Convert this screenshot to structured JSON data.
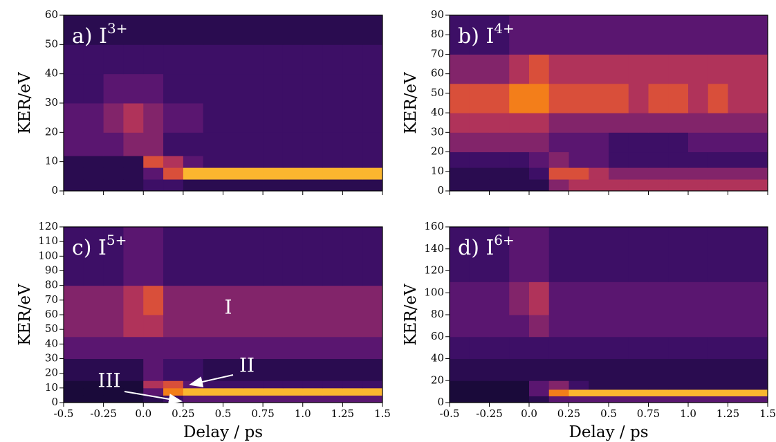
{
  "colormap": [
    "#1a0a3a",
    "#2a0c50",
    "#3d0f66",
    "#5a1670",
    "#82246a",
    "#b0335a",
    "#d94f3a",
    "#f37e1a",
    "#fbb62f",
    "#fcffa4"
  ],
  "chart_data": [
    {
      "type": "heatmap",
      "title": "a) I",
      "title_sup": "3+",
      "ylabel": "KER/eV",
      "xticklabels": false,
      "xlim": [
        -0.5,
        1.5
      ],
      "ylim": [
        0,
        60
      ],
      "zlim": [
        0,
        9
      ],
      "xticks": [
        -0.5,
        -0.25,
        0,
        0.25,
        0.5,
        0.75,
        1,
        1.25,
        1.5
      ],
      "yticks": [
        0,
        10,
        20,
        30,
        40,
        50,
        60
      ],
      "xbins": [
        -0.5,
        -0.375,
        -0.25,
        -0.125,
        0,
        0.125,
        0.25,
        0.375,
        0.5,
        0.625,
        0.75,
        0.875,
        1,
        1.125,
        1.25,
        1.375,
        1.5
      ],
      "ybins": [
        0,
        4,
        8,
        12,
        20,
        30,
        40,
        50,
        60
      ],
      "z": [
        [
          1,
          1,
          1,
          1,
          2,
          2,
          1,
          1,
          1,
          1,
          1,
          1,
          1,
          1,
          1,
          1
        ],
        [
          1,
          1,
          1,
          1,
          3,
          6,
          8,
          8,
          8,
          8,
          8,
          8,
          8,
          8,
          8,
          8
        ],
        [
          1,
          1,
          1,
          1,
          6,
          5,
          3,
          2,
          2,
          2,
          2,
          2,
          2,
          2,
          2,
          2
        ],
        [
          3,
          3,
          3,
          4,
          4,
          2,
          2,
          2,
          2,
          2,
          2,
          2,
          2,
          2,
          2,
          2
        ],
        [
          3,
          3,
          4,
          5,
          4,
          3,
          3,
          2,
          2,
          2,
          2,
          2,
          2,
          2,
          2,
          2
        ],
        [
          2,
          2,
          3,
          3,
          3,
          2,
          2,
          2,
          2,
          2,
          2,
          2,
          2,
          2,
          2,
          2
        ],
        [
          2,
          2,
          2,
          2,
          2,
          2,
          2,
          2,
          2,
          2,
          2,
          2,
          2,
          2,
          2,
          2
        ],
        [
          1,
          1,
          1,
          1,
          1,
          1,
          1,
          1,
          1,
          1,
          1,
          1,
          1,
          1,
          1,
          1
        ]
      ]
    },
    {
      "type": "heatmap",
      "title": "b) I",
      "title_sup": "4+",
      "ylabel": "KER/eV",
      "xticklabels": false,
      "xlim": [
        -0.5,
        1.5
      ],
      "ylim": [
        0,
        90
      ],
      "zlim": [
        0,
        9
      ],
      "xticks": [
        -0.5,
        -0.25,
        0,
        0.25,
        0.5,
        0.75,
        1,
        1.25,
        1.5
      ],
      "yticks": [
        0,
        10,
        20,
        30,
        40,
        50,
        60,
        70,
        80,
        90
      ],
      "xbins": [
        -0.5,
        -0.375,
        -0.25,
        -0.125,
        0,
        0.125,
        0.25,
        0.375,
        0.5,
        0.625,
        0.75,
        0.875,
        1,
        1.125,
        1.25,
        1.375,
        1.5
      ],
      "ybins": [
        0,
        6,
        12,
        20,
        30,
        40,
        55,
        70,
        90
      ],
      "z": [
        [
          1,
          1,
          1,
          1,
          1,
          4,
          5,
          5,
          5,
          5,
          5,
          5,
          5,
          5,
          5,
          5
        ],
        [
          1,
          1,
          1,
          1,
          2,
          6,
          6,
          5,
          4,
          4,
          4,
          4,
          4,
          4,
          4,
          4
        ],
        [
          2,
          2,
          2,
          2,
          3,
          4,
          3,
          3,
          2,
          2,
          2,
          2,
          2,
          2,
          2,
          2
        ],
        [
          4,
          4,
          4,
          4,
          4,
          3,
          3,
          3,
          2,
          2,
          2,
          2,
          3,
          3,
          3,
          3
        ],
        [
          5,
          5,
          5,
          5,
          5,
          4,
          4,
          4,
          4,
          4,
          4,
          4,
          4,
          4,
          4,
          4
        ],
        [
          6,
          6,
          6,
          7,
          7,
          6,
          6,
          6,
          6,
          5,
          6,
          6,
          5,
          6,
          5,
          5
        ],
        [
          4,
          4,
          4,
          5,
          6,
          5,
          5,
          5,
          5,
          5,
          5,
          5,
          5,
          5,
          5,
          5
        ],
        [
          2,
          2,
          2,
          3,
          3,
          3,
          3,
          3,
          3,
          3,
          3,
          3,
          3,
          3,
          3,
          3
        ]
      ]
    },
    {
      "type": "heatmap",
      "title": "c) I",
      "title_sup": "5+",
      "ylabel": "KER/eV",
      "xlabel": "Delay / ps",
      "xticklabels": true,
      "xlim": [
        -0.5,
        1.5
      ],
      "ylim": [
        0,
        120
      ],
      "zlim": [
        0,
        9
      ],
      "xticks": [
        -0.5,
        -0.25,
        {
          "value": 0,
          "label": "0.0"
        },
        0.25,
        0.5,
        0.75,
        {
          "value": 1,
          "label": "1.0"
        },
        1.25,
        1.5
      ],
      "yticks": [
        0,
        10,
        20,
        30,
        40,
        50,
        60,
        70,
        80,
        90,
        100,
        110,
        120
      ],
      "xbins": [
        -0.5,
        -0.375,
        -0.25,
        -0.125,
        0,
        0.125,
        0.25,
        0.375,
        0.5,
        0.625,
        0.75,
        0.875,
        1,
        1.125,
        1.25,
        1.375,
        1.5
      ],
      "ybins": [
        0,
        5,
        10,
        15,
        30,
        45,
        60,
        80,
        120
      ],
      "z": [
        [
          0,
          0,
          0,
          0,
          1,
          2,
          3,
          3,
          3,
          3,
          3,
          3,
          3,
          3,
          3,
          3
        ],
        [
          0,
          0,
          0,
          0,
          3,
          7,
          8,
          8,
          8,
          8,
          8,
          8,
          8,
          8,
          8,
          8
        ],
        [
          0,
          0,
          0,
          0,
          5,
          6,
          3,
          2,
          2,
          2,
          2,
          2,
          2,
          2,
          2,
          2
        ],
        [
          1,
          1,
          1,
          1,
          3,
          2,
          2,
          1,
          1,
          1,
          1,
          1,
          1,
          1,
          1,
          1
        ],
        [
          3,
          3,
          3,
          3,
          3,
          3,
          3,
          3,
          3,
          3,
          3,
          3,
          3,
          3,
          3,
          3
        ],
        [
          4,
          4,
          4,
          5,
          5,
          4,
          4,
          4,
          4,
          4,
          4,
          4,
          4,
          4,
          4,
          4
        ],
        [
          4,
          4,
          4,
          5,
          6,
          4,
          4,
          4,
          4,
          4,
          4,
          4,
          4,
          4,
          4,
          4
        ],
        [
          2,
          2,
          2,
          3,
          3,
          2,
          2,
          2,
          2,
          2,
          2,
          2,
          2,
          2,
          2,
          2
        ]
      ],
      "annotations": [
        "I",
        "II",
        "III"
      ]
    },
    {
      "type": "heatmap",
      "title": "d) I",
      "title_sup": "6+",
      "ylabel": "KER/eV",
      "xlabel": "Delay / ps",
      "xticklabels": true,
      "xlim": [
        -0.5,
        1.5
      ],
      "ylim": [
        0,
        160
      ],
      "zlim": [
        0,
        9
      ],
      "xticks": [
        -0.5,
        -0.25,
        {
          "value": 0,
          "label": "0.0"
        },
        0.25,
        0.5,
        0.75,
        {
          "value": 1,
          "label": "1.0"
        },
        1.25,
        1.5
      ],
      "yticks": [
        0,
        20,
        40,
        60,
        80,
        100,
        120,
        140,
        160
      ],
      "xbins": [
        -0.5,
        -0.375,
        -0.25,
        -0.125,
        0,
        0.125,
        0.25,
        0.375,
        0.5,
        0.625,
        0.75,
        0.875,
        1,
        1.125,
        1.25,
        1.375,
        1.5
      ],
      "ybins": [
        0,
        6,
        12,
        20,
        40,
        60,
        80,
        110,
        160
      ],
      "z": [
        [
          0,
          0,
          0,
          0,
          1,
          3,
          3,
          3,
          3,
          3,
          3,
          3,
          3,
          3,
          3,
          3
        ],
        [
          0,
          0,
          0,
          0,
          3,
          7,
          8,
          8,
          8,
          8,
          8,
          8,
          8,
          8,
          8,
          8
        ],
        [
          0,
          0,
          0,
          0,
          3,
          4,
          2,
          1,
          1,
          1,
          1,
          1,
          1,
          1,
          1,
          1
        ],
        [
          1,
          1,
          1,
          1,
          1,
          1,
          1,
          1,
          1,
          1,
          1,
          1,
          1,
          1,
          1,
          1
        ],
        [
          2,
          2,
          2,
          2,
          2,
          2,
          2,
          2,
          2,
          2,
          2,
          2,
          2,
          2,
          2,
          2
        ],
        [
          3,
          3,
          3,
          3,
          4,
          3,
          3,
          3,
          3,
          3,
          3,
          3,
          3,
          3,
          3,
          3
        ],
        [
          3,
          3,
          3,
          4,
          5,
          3,
          3,
          3,
          3,
          3,
          3,
          3,
          3,
          3,
          3,
          3
        ],
        [
          2,
          2,
          2,
          3,
          3,
          2,
          2,
          2,
          2,
          2,
          2,
          2,
          2,
          2,
          2,
          2
        ]
      ]
    }
  ]
}
